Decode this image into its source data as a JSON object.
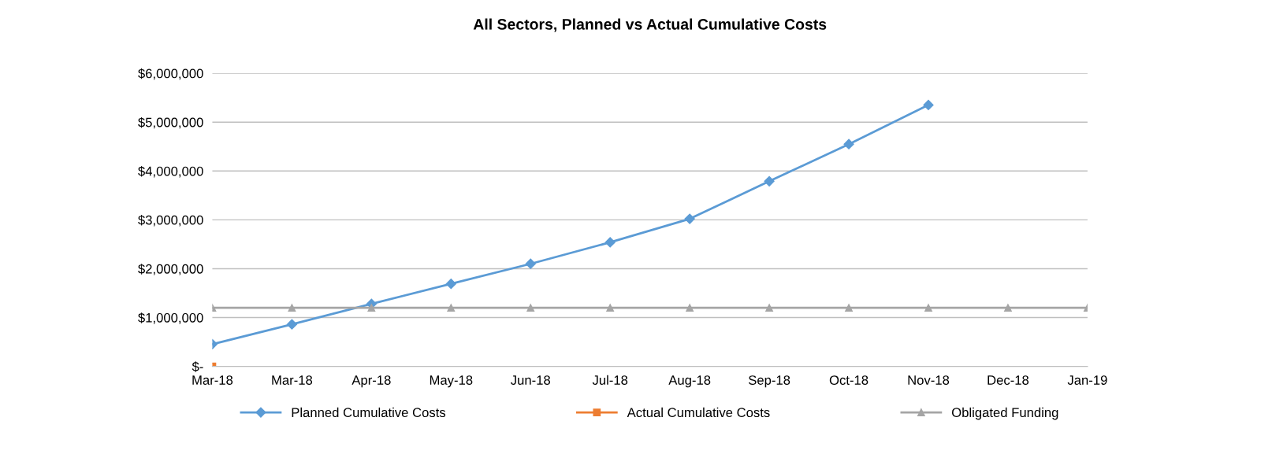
{
  "chart_data": {
    "type": "line",
    "title": "All Sectors, Planned vs Actual Cumulative Costs",
    "categories": [
      "Mar-18",
      "Mar-18",
      "Apr-18",
      "May-18",
      "Jun-18",
      "Jul-18",
      "Aug-18",
      "Sep-18",
      "Oct-18",
      "Nov-18",
      "Dec-18",
      "Jan-19"
    ],
    "series": [
      {
        "name": "Planned Cumulative Costs",
        "color": "#5b9bd5",
        "marker": "diamond",
        "values": [
          455000,
          860000,
          1280000,
          1690000,
          2100000,
          2540000,
          3020000,
          3790000,
          4550000,
          5350000,
          null,
          null
        ]
      },
      {
        "name": "Actual Cumulative Costs",
        "color": "#ed7d31",
        "marker": "square",
        "values": [
          0,
          null,
          null,
          null,
          null,
          null,
          null,
          null,
          null,
          null,
          null,
          null
        ]
      },
      {
        "name": "Obligated Funding",
        "color": "#a5a5a5",
        "marker": "triangle",
        "values": [
          1200000,
          1200000,
          1200000,
          1200000,
          1200000,
          1200000,
          1200000,
          1200000,
          1200000,
          1200000,
          1200000,
          1200000
        ]
      }
    ],
    "ylim": [
      0,
      6000000
    ],
    "yticks": [
      {
        "value": 0,
        "label": "$-"
      },
      {
        "value": 1000000,
        "label": "$1,000,000"
      },
      {
        "value": 2000000,
        "label": "$2,000,000"
      },
      {
        "value": 3000000,
        "label": "$3,000,000"
      },
      {
        "value": 4000000,
        "label": "$4,000,000"
      },
      {
        "value": 5000000,
        "label": "$5,000,000"
      },
      {
        "value": 6000000,
        "label": "$6,000,000"
      }
    ],
    "grid": "y",
    "legend": "bottom",
    "line_style": "solid"
  }
}
